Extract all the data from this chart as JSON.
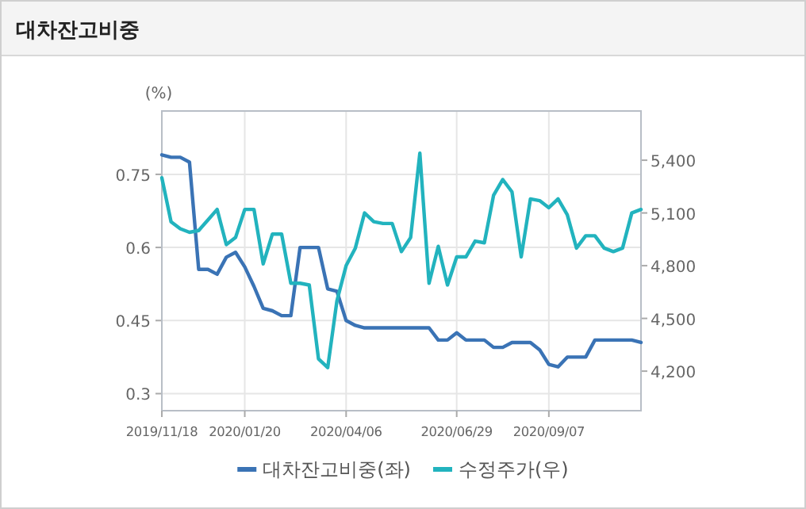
{
  "chart_data": {
    "type": "line",
    "title": "대차잔고비중",
    "ylabel": "(%)",
    "categories": [
      "2019/11/18",
      null,
      null,
      null,
      null,
      null,
      null,
      null,
      null,
      "2020/01/20",
      null,
      null,
      null,
      null,
      null,
      null,
      null,
      null,
      null,
      null,
      "2020/04/06",
      null,
      null,
      null,
      null,
      null,
      null,
      null,
      null,
      null,
      null,
      null,
      "2020/06/29",
      null,
      null,
      null,
      null,
      null,
      null,
      null,
      null,
      null,
      "2020/09/07",
      null,
      null,
      null,
      null,
      null,
      null,
      null,
      null,
      null,
      null
    ],
    "series": [
      {
        "name": "대차잔고비중(좌)",
        "color": "#3a73b5",
        "values": [
          0.79,
          0.785,
          0.785,
          0.775,
          0.555,
          0.555,
          0.545,
          0.58,
          0.59,
          0.56,
          0.52,
          0.475,
          0.47,
          0.46,
          0.46,
          0.6,
          0.6,
          0.6,
          0.515,
          0.51,
          0.45,
          0.44,
          0.435,
          0.435,
          0.435,
          0.435,
          0.435,
          0.435,
          0.435,
          0.435,
          0.41,
          0.41,
          0.425,
          0.41,
          0.41,
          0.41,
          0.395,
          0.395,
          0.405,
          0.405,
          0.405,
          0.39,
          0.36,
          0.355,
          0.375,
          0.375,
          0.375,
          0.41,
          0.41,
          0.41,
          0.41,
          0.41,
          0.405
        ]
      },
      {
        "name": "수정주가(우)",
        "color": "#22b3be",
        "axis": "y2",
        "values": [
          5300,
          5050,
          5010,
          4990,
          5000,
          5060,
          5120,
          4920,
          4960,
          5120,
          5120,
          4810,
          4980,
          4980,
          4700,
          4700,
          4690,
          4270,
          4220,
          4600,
          4800,
          4900,
          5100,
          5050,
          5040,
          5040,
          4880,
          4960,
          5440,
          4700,
          4910,
          4690,
          4850,
          4850,
          4940,
          4930,
          5200,
          5290,
          5220,
          4850,
          5180,
          5170,
          5130,
          5180,
          5090,
          4900,
          4970,
          4970,
          4900,
          4880,
          4900,
          5100,
          5120
        ]
      }
    ],
    "ylim": [
      0.265,
      0.88
    ],
    "yticks": [
      0.3,
      0.45,
      0.6,
      0.75
    ],
    "y2lim": [
      3975,
      5680
    ],
    "y2ticks": [
      {
        "value": 4200,
        "label": "4,200"
      },
      {
        "value": 4500,
        "label": "4,500"
      },
      {
        "value": 4800,
        "label": "4,800"
      },
      {
        "value": 5100,
        "label": "5,100"
      },
      {
        "value": 5400,
        "label": "5,400"
      }
    ],
    "grid": true,
    "legend": "bottom",
    "marker": "none",
    "line_style": "solid"
  }
}
